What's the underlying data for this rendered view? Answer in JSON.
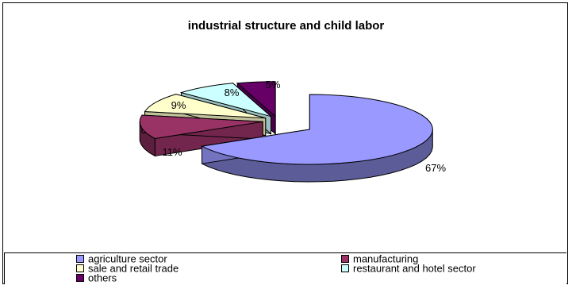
{
  "chart_data": {
    "type": "pie",
    "title": "industrial structure and child labor",
    "three_d": true,
    "exploded": true,
    "legend_position": "bottom",
    "slices": [
      {
        "label": "agriculture sector",
        "value": 67,
        "value_label": "67%",
        "color": "#9999FF"
      },
      {
        "label": "manufacturing",
        "value": 11,
        "value_label": "11%",
        "color": "#993366"
      },
      {
        "label": "sale and retail trade",
        "value": 9,
        "value_label": "9%",
        "color": "#FFFFCC"
      },
      {
        "label": "restaurant and hotel sector",
        "value": 8,
        "value_label": "8%",
        "color": "#CCFFFF"
      },
      {
        "label": "others",
        "value": 5,
        "value_label": "5%",
        "color": "#660066"
      }
    ]
  }
}
